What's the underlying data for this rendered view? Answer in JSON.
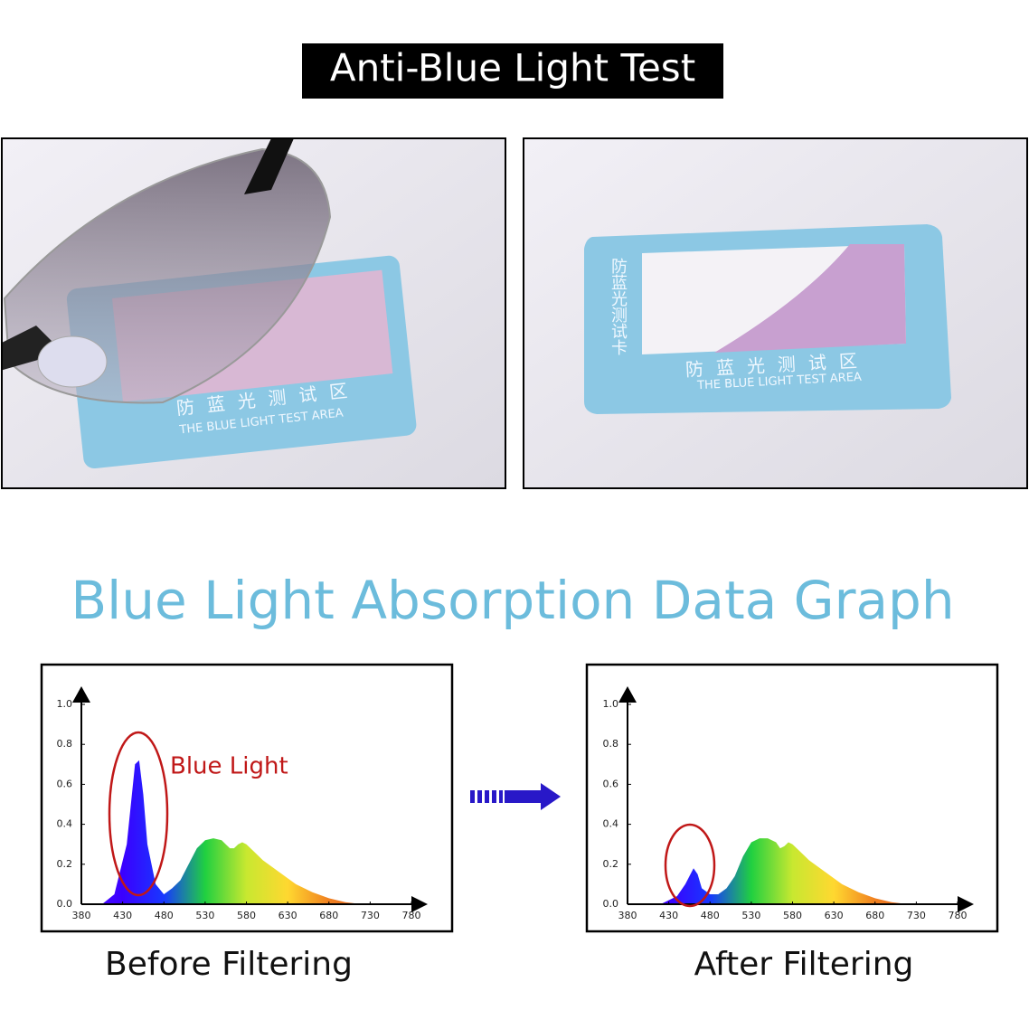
{
  "header": {
    "title": "Anti-Blue Light Test"
  },
  "photos": [
    {
      "card_text": "防蓝光测试区",
      "card_subtext": "THE BLUE LIGHT TEST AREA"
    },
    {
      "card_side_text": "防蓝光测试卡",
      "card_text": "防蓝光测试区",
      "card_subtext": "THE BLUE LIGHT TEST AREA"
    }
  ],
  "section_title": "Blue Light Absorption Data Graph",
  "chart_data": [
    {
      "type": "area",
      "caption": "Before Filtering",
      "annotation": "Blue Light",
      "x": [
        405,
        420,
        435,
        440,
        445,
        450,
        455,
        460,
        470,
        480,
        490,
        500,
        510,
        520,
        530,
        540,
        550,
        555,
        560,
        565,
        570,
        575,
        580,
        590,
        600,
        620,
        640,
        660,
        680,
        700,
        720
      ],
      "values": [
        0,
        0.05,
        0.3,
        0.5,
        0.7,
        0.72,
        0.55,
        0.3,
        0.1,
        0.05,
        0.08,
        0.12,
        0.2,
        0.28,
        0.32,
        0.33,
        0.32,
        0.3,
        0.28,
        0.28,
        0.3,
        0.31,
        0.3,
        0.26,
        0.22,
        0.16,
        0.1,
        0.06,
        0.03,
        0.01,
        0
      ],
      "xlim": [
        380,
        780
      ],
      "xticks": [
        380,
        430,
        480,
        530,
        580,
        630,
        680,
        730,
        780
      ],
      "ylim": [
        0,
        1
      ],
      "yticks": [
        {
          "value": 0,
          "label": "0.0"
        },
        0.2,
        0.4,
        0.6,
        0.8,
        {
          "value": 1,
          "label": "1.0"
        }
      ]
    },
    {
      "type": "area",
      "caption": "After Filtering",
      "x": [
        420,
        440,
        450,
        460,
        465,
        470,
        480,
        490,
        500,
        510,
        520,
        530,
        540,
        550,
        560,
        565,
        570,
        575,
        580,
        590,
        600,
        620,
        640,
        660,
        680,
        700,
        720
      ],
      "values": [
        0,
        0.04,
        0.1,
        0.18,
        0.15,
        0.08,
        0.05,
        0.05,
        0.08,
        0.14,
        0.24,
        0.31,
        0.33,
        0.33,
        0.31,
        0.28,
        0.29,
        0.31,
        0.3,
        0.26,
        0.22,
        0.16,
        0.1,
        0.06,
        0.03,
        0.01,
        0
      ],
      "xlim": [
        380,
        780
      ],
      "xticks": [
        380,
        430,
        480,
        530,
        580,
        630,
        680,
        730,
        780
      ],
      "ylim": [
        0,
        1
      ],
      "yticks": [
        {
          "value": 0,
          "label": "0.0"
        },
        0.2,
        0.4,
        0.6,
        0.8,
        {
          "value": 1,
          "label": "1.0"
        }
      ]
    }
  ]
}
